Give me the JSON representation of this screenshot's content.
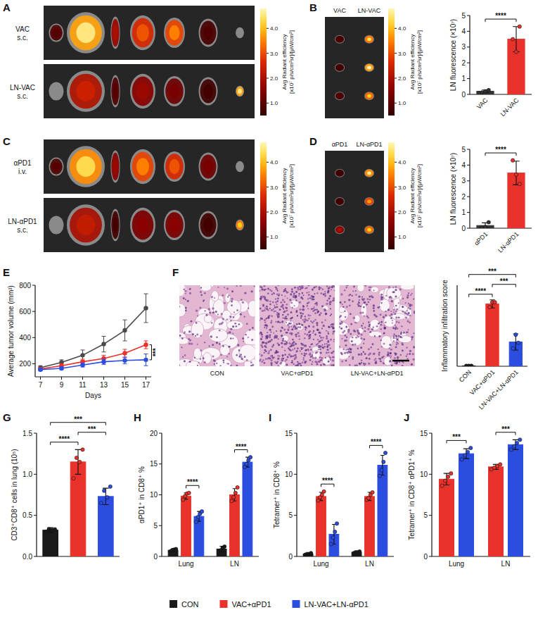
{
  "figure_legend": {
    "entries": [
      {
        "name": "CON",
        "color": "#1a1a1a"
      },
      {
        "name": "VAC+αPD1",
        "color": "#e8322b"
      },
      {
        "name": "LN-VAC+LN-αPD1",
        "color": "#2b4de0"
      }
    ]
  },
  "images": [
    {
      "panel": "A",
      "kind": "organs",
      "rows": [
        {
          "label": [
            "VAC",
            "s.c."
          ]
        },
        {
          "label": [
            "LN-VAC",
            "s.c."
          ]
        }
      ],
      "colorbar": {
        "label": [
          "Avg Radiant efficiency",
          "[x10⁷ p/s/cm²sr]/[μW/cm²]"
        ],
        "range": [
          0.5,
          4.8
        ],
        "ticks": [
          {
            "value": 1,
            "label": "1.0"
          },
          {
            "value": 2,
            "label": "2.0"
          },
          {
            "value": 3,
            "label": "3.0"
          },
          {
            "value": 4,
            "label": "4.0"
          }
        ]
      }
    },
    {
      "panel": "B",
      "kind": "lymph_nodes",
      "columns": [
        "VAC",
        "LN-VAC"
      ],
      "colorbar": {
        "label": [
          "Avg Radiant efficiency",
          "[x10⁷ p/s/cm²sr]/[μW/cm²]"
        ],
        "range": [
          0.5,
          4.8
        ],
        "ticks": [
          {
            "value": 1,
            "label": "1.0"
          },
          {
            "value": 2,
            "label": "2.0"
          },
          {
            "value": 3,
            "label": "3.0"
          },
          {
            "value": 4,
            "label": "4.0"
          }
        ]
      }
    },
    {
      "panel": "C",
      "kind": "organs",
      "rows": [
        {
          "label": [
            "αPD1",
            "i.v."
          ]
        },
        {
          "label": [
            "LN-αPD1",
            "s.c."
          ]
        }
      ],
      "colorbar": {
        "label": [
          "Avg Radiant efficiency",
          "[x10⁷ p/s/cm²sr]/[μW/cm²]"
        ],
        "range": [
          0.5,
          4.8
        ],
        "ticks": [
          {
            "value": 1,
            "label": "1.0"
          },
          {
            "value": 2,
            "label": "2.0"
          },
          {
            "value": 3,
            "label": "3.0"
          },
          {
            "value": 4,
            "label": "4.0"
          }
        ]
      }
    },
    {
      "panel": "D",
      "kind": "lymph_nodes",
      "columns": [
        "αPD1",
        "LN-αPD1"
      ],
      "colorbar": {
        "label": [
          "Avg Radiant efficiency",
          "[x10⁷ p/s/cm²sr]/[μW/cm²]"
        ],
        "range": [
          0.5,
          4.8
        ],
        "ticks": [
          {
            "value": 1,
            "label": "1.0"
          },
          {
            "value": 2,
            "label": "2.0"
          },
          {
            "value": 3,
            "label": "3.0"
          },
          {
            "value": 4,
            "label": "4.0"
          }
        ]
      }
    },
    {
      "panel": "F",
      "kind": "histology",
      "columns": [
        "CON",
        "VAC+αPD1",
        "LN-VAC+LN-αPD1"
      ]
    }
  ],
  "chart_data": [
    {
      "type": "bar",
      "y_label": "LN fluorescence (×10⁷)",
      "categories": [
        "VAC",
        "LN-VAC"
      ],
      "values": [
        0.2,
        3.5
      ],
      "errors": [
        0.08,
        0.8
      ],
      "points": [
        [
          0.12,
          0.2,
          0.27
        ],
        [
          3.5,
          2.7,
          4.3
        ]
      ],
      "colors": [
        "#333333",
        "#e8322b"
      ],
      "ylim": [
        0,
        5
      ],
      "yticks": [
        0,
        1,
        2,
        3,
        4,
        5
      ],
      "annotations": [
        {
          "text": "****",
          "from": 0,
          "to": 1
        }
      ]
    },
    {
      "type": "bar",
      "y_label": "LN fluorescence (×10⁷)",
      "categories": [
        "αPD1",
        "LN-αPD1"
      ],
      "values": [
        0.17,
        3.5
      ],
      "errors": [
        0.17,
        0.75
      ],
      "points": [
        [
          0.05,
          0.07,
          0.38
        ],
        [
          4.3,
          3.4,
          2.8
        ]
      ],
      "colors": [
        "#333333",
        "#e8322b"
      ],
      "ylim": [
        0,
        5
      ],
      "yticks": [
        0,
        1,
        2,
        3,
        4,
        5
      ],
      "annotations": [
        {
          "text": "****",
          "from": 0,
          "to": 1
        }
      ]
    },
    {
      "panel": "E",
      "type": "line",
      "x_label": "Days",
      "y_label": "Average tumor volume (mm³)",
      "x": [
        7,
        9,
        11,
        13,
        15,
        17
      ],
      "xlim": [
        6.5,
        17.5
      ],
      "xticks": [
        7,
        9,
        11,
        13,
        15,
        17
      ],
      "ylim": [
        100,
        800
      ],
      "yticks": [
        200,
        400,
        600,
        800
      ],
      "series": [
        {
          "color": "#4a4a4a",
          "marker": "circle",
          "values": [
            170,
            210,
            265,
            350,
            455,
            625
          ],
          "errors": [
            15,
            20,
            40,
            60,
            80,
            110
          ]
        },
        {
          "color": "#e8322b",
          "marker": "circle",
          "values": [
            160,
            185,
            215,
            240,
            280,
            345
          ],
          "errors": [
            10,
            15,
            20,
            25,
            30,
            30
          ]
        },
        {
          "color": "#2b4de0",
          "marker": "circle",
          "values": [
            155,
            165,
            190,
            215,
            225,
            230
          ],
          "errors": [
            10,
            10,
            15,
            20,
            25,
            45
          ]
        }
      ],
      "annotations": [
        {
          "text": "***",
          "series": [
            1,
            2
          ],
          "index": 5
        }
      ]
    },
    {
      "type": "bar",
      "y_label": "Inflammatory infiltration score",
      "categories": [
        "CON",
        "VAC+αPD1",
        "LN-VAC+LN-αPD1"
      ],
      "values": [
        0.05,
        7.7,
        3.0
      ],
      "errors": [
        0.05,
        0.5,
        1.0
      ],
      "points": [
        [
          0.05,
          0.05,
          0.05
        ],
        [
          7.3,
          7.9,
          7.9
        ],
        [
          2.2,
          3.9,
          2.9
        ]
      ],
      "colors": [
        "#1a1a1a",
        "#e8322b",
        "#2b4de0"
      ],
      "ylim": [
        0,
        10
      ],
      "tick_labels": "x",
      "annotations": [
        {
          "text": "****",
          "from": 0,
          "to": 1
        },
        {
          "text": "***",
          "from": 0,
          "to": 2
        },
        {
          "text": "***",
          "from": 1,
          "to": 2
        }
      ]
    },
    {
      "panel": "G",
      "type": "bar",
      "y_label": "CD3⁺CD8⁺ cells in lung (10⁵)",
      "categories": [
        null,
        null,
        null
      ],
      "values": [
        0.32,
        1.15,
        0.73
      ],
      "errors": [
        0.03,
        0.15,
        0.1
      ],
      "points": [
        [
          0.3,
          0.33,
          0.32,
          0.33
        ],
        [
          0.95,
          1.2,
          1.15,
          1.3
        ],
        [
          0.65,
          0.8,
          0.72,
          0.85
        ]
      ],
      "colors": [
        "#1a1a1a",
        "#e8322b",
        "#2b4de0"
      ],
      "ylim": [
        0,
        1.5
      ],
      "yticks": [
        {
          "value": 0,
          "label": "0.0"
        },
        {
          "value": 0.5,
          "label": "0.5"
        },
        {
          "value": 1,
          "label": "1.0"
        },
        {
          "value": 1.5,
          "label": "1.5"
        }
      ],
      "tick_labels": "y",
      "annotations": [
        {
          "text": "****",
          "from": 0,
          "to": 1
        },
        {
          "text": "***",
          "from": 0,
          "to": 2
        },
        {
          "text": "***",
          "from": 1,
          "to": 2
        }
      ]
    },
    {
      "panel": "H",
      "type": "bar",
      "y_label": "αPD1⁺ in CD8⁺ %",
      "categories": [
        "Lung",
        "LN"
      ],
      "series": [
        {
          "color": "#1a1a1a",
          "values": [
            1.0,
            1.2
          ],
          "errors": [
            0.25,
            0.45
          ],
          "points": [
            [
              0.8,
              1.0,
              1.1,
              1.2
            ],
            [
              0.7,
              1.0,
              1.4,
              1.6
            ]
          ]
        },
        {
          "color": "#e8322b",
          "values": [
            9.8,
            10.0
          ],
          "errors": [
            0.5,
            1.0
          ],
          "points": [
            [
              9.2,
              9.8,
              10.2,
              10.3
            ],
            [
              9.0,
              9.6,
              10.3,
              11.2
            ]
          ]
        },
        {
          "color": "#2b4de0",
          "values": [
            6.5,
            15.3
          ],
          "errors": [
            0.8,
            0.8
          ],
          "points": [
            [
              5.6,
              6.4,
              6.9,
              7.3
            ],
            [
              14.5,
              15.0,
              15.6,
              16.1
            ]
          ]
        }
      ],
      "ylim": [
        0,
        20
      ],
      "yticks": [
        0,
        5,
        10,
        15,
        20
      ],
      "annotations": [
        {
          "text": "****",
          "group": 0,
          "from": 1,
          "to": 2
        },
        {
          "text": "****",
          "group": 1,
          "from": 1,
          "to": 2
        }
      ]
    },
    {
      "panel": "I",
      "type": "bar",
      "y_label": "Tetramer⁺ in CD8⁺ %",
      "categories": [
        "Lung",
        "LN"
      ],
      "series": [
        {
          "color": "#1a1a1a",
          "values": [
            0.3,
            0.5
          ],
          "errors": [
            0.1,
            0.1
          ],
          "points": [
            [
              0.2,
              0.3,
              0.3,
              0.4
            ],
            [
              0.4,
              0.5,
              0.5,
              0.6
            ]
          ]
        },
        {
          "color": "#e8322b",
          "values": [
            7.3,
            7.3
          ],
          "errors": [
            0.5,
            0.5
          ],
          "points": [
            [
              6.8,
              7.2,
              7.5,
              7.9
            ],
            [
              6.9,
              7.1,
              7.5,
              7.8
            ]
          ]
        },
        {
          "color": "#2b4de0",
          "values": [
            2.7,
            11.1
          ],
          "errors": [
            1.2,
            1.2
          ],
          "points": [
            [
              1.5,
              2.3,
              3.0,
              4.0
            ],
            [
              9.8,
              10.5,
              11.5,
              12.6
            ]
          ]
        }
      ],
      "ylim": [
        0,
        15
      ],
      "yticks": [
        0,
        5,
        10,
        15
      ],
      "annotations": [
        {
          "text": "****",
          "group": 0,
          "from": 1,
          "to": 2
        },
        {
          "text": "****",
          "group": 1,
          "from": 1,
          "to": 2
        }
      ]
    },
    {
      "panel": "J",
      "type": "bar",
      "y_label": "Tetramer⁺ in CD8⁺ αPD1⁺ %",
      "categories": [
        "Lung",
        "LN"
      ],
      "series": [
        {
          "color": "#e8322b",
          "values": [
            9.4,
            10.9
          ],
          "errors": [
            0.7,
            0.3
          ],
          "points": [
            [
              8.6,
              9.2,
              9.7,
              10.1
            ],
            [
              10.6,
              10.8,
              11.0,
              11.2
            ]
          ]
        },
        {
          "color": "#2b4de0",
          "values": [
            12.5,
            13.6
          ],
          "errors": [
            0.6,
            0.6
          ],
          "points": [
            [
              11.8,
              12.3,
              12.7,
              13.2
            ],
            [
              13.0,
              13.4,
              13.8,
              14.2
            ]
          ]
        }
      ],
      "ylim": [
        0,
        15
      ],
      "yticks": [
        0,
        5,
        10,
        15
      ],
      "annotations": [
        {
          "text": "***",
          "group": 0,
          "from": 0,
          "to": 1
        },
        {
          "text": "***",
          "group": 1,
          "from": 0,
          "to": 1
        }
      ]
    }
  ]
}
